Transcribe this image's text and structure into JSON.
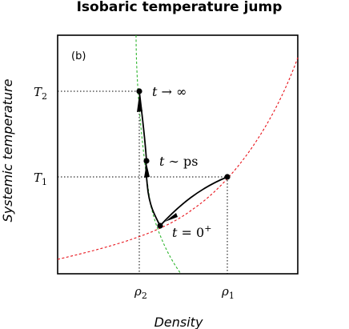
{
  "figure": {
    "title": "Isobaric temperature jump",
    "panel_label": "(b)",
    "xlabel": "Density",
    "ylabel": "Systemic temperature",
    "y_ticks": {
      "t1": "T",
      "t1_sub": "1",
      "t2": "T",
      "t2_sub": "2"
    },
    "x_ticks": {
      "rho1": "ρ",
      "rho1_sub": "1",
      "rho2": "ρ",
      "rho2_sub": "2"
    },
    "point_labels": {
      "t_inf_var": "t",
      "t_inf_rest": " → ∞",
      "t_ps_var": "t",
      "t_ps_rest": " ∼ ps",
      "t_zero_var": "t",
      "t_zero_rest": " = 0",
      "t_zero_sup": "+"
    }
  },
  "colors": {
    "red_curve": "#e8141c",
    "green_curve": "#2db52d",
    "frame": "#000000",
    "guide": "#000000"
  }
}
